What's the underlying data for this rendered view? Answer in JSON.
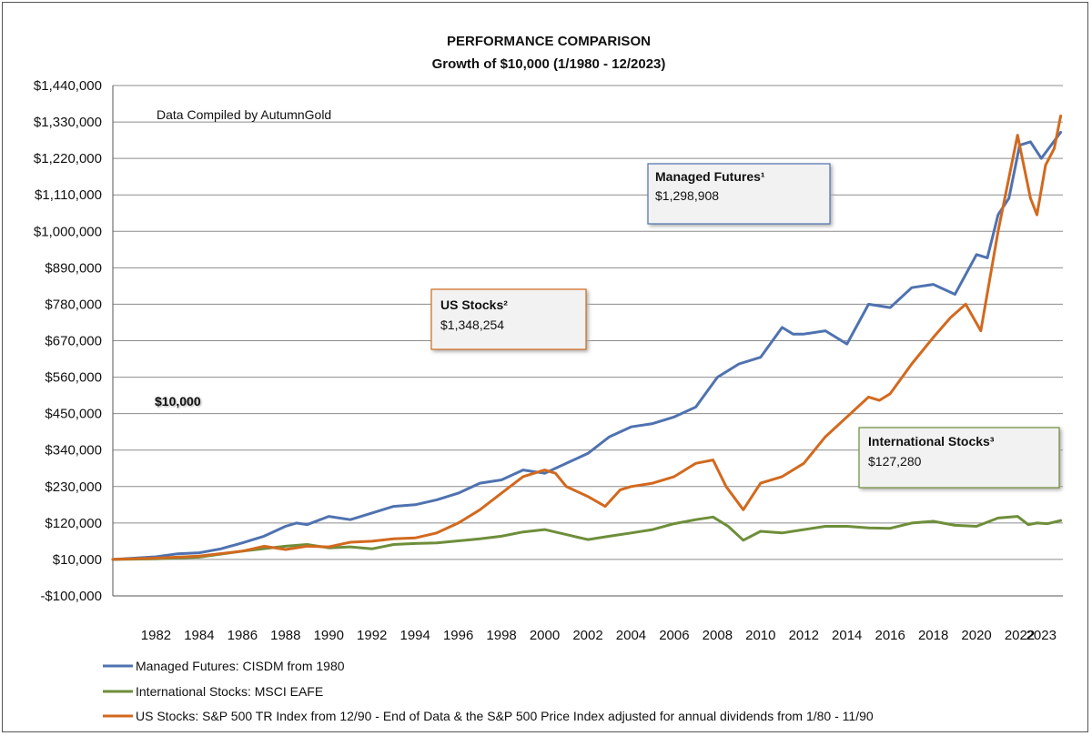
{
  "chart_data": {
    "type": "line",
    "title": "PERFORMANCE COMPARISON",
    "subtitle": "Growth of $10,000 (1/1980 - 12/2023)",
    "note": "Data Compiled by AutumnGold",
    "start_label": "$10,000",
    "xlim": [
      1980,
      2024
    ],
    "ylim": [
      -100000,
      1440000
    ],
    "y_ticks": [
      -100000,
      10000,
      120000,
      230000,
      340000,
      450000,
      560000,
      670000,
      780000,
      890000,
      1000000,
      1110000,
      1220000,
      1330000,
      1440000
    ],
    "y_tick_labels": [
      "-$100,000",
      "$10,000",
      "$120,000",
      "$230,000",
      "$340,000",
      "$450,000",
      "$560,000",
      "$670,000",
      "$780,000",
      "$890,000",
      "$1,000,000",
      "$1,110,000",
      "$1,220,000",
      "$1,330,000",
      "$1,440,000"
    ],
    "x_ticks": [
      1982,
      1984,
      1986,
      1988,
      1990,
      1992,
      1994,
      1996,
      1998,
      2000,
      2002,
      2004,
      2006,
      2008,
      2010,
      2012,
      2014,
      2016,
      2018,
      2020,
      2022,
      2023
    ],
    "x_tick_labels": [
      "1982",
      "1984",
      "1986",
      "1988",
      "1990",
      "1992",
      "1994",
      "1996",
      "1998",
      "2000",
      "2002",
      "2004",
      "2006",
      "2008",
      "2010",
      "2012",
      "2014",
      "2016",
      "2018",
      "2020",
      "2022",
      "2023"
    ],
    "grid": true,
    "legend_position": "bottom",
    "series": [
      {
        "name": "Managed Futures: CISDM from 1980",
        "color": "#4f72b0",
        "x": [
          1980,
          1981,
          1982,
          1983,
          1984,
          1985,
          1986,
          1987,
          1988,
          1988.5,
          1989,
          1990,
          1991,
          1992,
          1993,
          1994,
          1995,
          1996,
          1997,
          1998,
          1999,
          2000,
          2001,
          2002,
          2003,
          2004,
          2005,
          2006,
          2007,
          2008,
          2009,
          2010,
          2011,
          2011.5,
          2012,
          2013,
          2014,
          2015,
          2016,
          2017,
          2018,
          2019,
          2020,
          2020.5,
          2021,
          2021.5,
          2022,
          2022.5,
          2023,
          2023.9
        ],
        "y": [
          10000,
          14000,
          18000,
          27000,
          30000,
          42000,
          60000,
          80000,
          110000,
          120000,
          115000,
          140000,
          130000,
          150000,
          170000,
          175000,
          190000,
          210000,
          240000,
          250000,
          280000,
          270000,
          300000,
          330000,
          380000,
          410000,
          420000,
          440000,
          470000,
          560000,
          600000,
          620000,
          710000,
          690000,
          690000,
          700000,
          660000,
          780000,
          770000,
          830000,
          840000,
          810000,
          930000,
          920000,
          1050000,
          1100000,
          1260000,
          1270000,
          1220000,
          1298908
        ]
      },
      {
        "name": "International Stocks: MSCI EAFE",
        "color": "#6e8e3a",
        "x": [
          1980,
          1982,
          1984,
          1986,
          1988,
          1989,
          1990,
          1991,
          1992,
          1993,
          1994,
          1995,
          1996,
          1997,
          1998,
          1999,
          2000,
          2001,
          2002,
          2003,
          2004,
          2005,
          2006,
          2007,
          2007.8,
          2008.5,
          2009.2,
          2010,
          2011,
          2012,
          2013,
          2014,
          2015,
          2016,
          2017,
          2018,
          2019,
          2020,
          2021,
          2021.9,
          2022.4,
          2022.8,
          2023.3,
          2023.9
        ],
        "y": [
          10000,
          12000,
          17000,
          35000,
          50000,
          55000,
          45000,
          48000,
          42000,
          55000,
          58000,
          60000,
          66000,
          72000,
          80000,
          93000,
          100000,
          85000,
          70000,
          80000,
          90000,
          100000,
          118000,
          130000,
          138000,
          110000,
          68000,
          95000,
          90000,
          100000,
          110000,
          110000,
          105000,
          104000,
          120000,
          125000,
          113000,
          110000,
          135000,
          140000,
          115000,
          120000,
          118000,
          127280
        ]
      },
      {
        "name": "US Stocks: S&P 500 TR Index from 12/90 - End of Data & the S&P 500 Price Index adjusted for annual dividends from 1/80 - 11/90",
        "color": "#d2691e",
        "x": [
          1980,
          1982,
          1984,
          1986,
          1987,
          1988,
          1989,
          1990,
          1991,
          1992,
          1993,
          1994,
          1995,
          1996,
          1997,
          1998,
          1999,
          2000,
          2000.5,
          2001,
          2002,
          2002.8,
          2003.5,
          2004,
          2005,
          2006,
          2007,
          2007.8,
          2008.4,
          2009.2,
          2010,
          2011,
          2012,
          2013,
          2014,
          2015,
          2015.5,
          2016,
          2017,
          2018,
          2018.8,
          2019.5,
          2020.2,
          2020.6,
          2021,
          2021.9,
          2022.5,
          2022.8,
          2023.2,
          2023.6,
          2023.9
        ],
        "y": [
          10000,
          14000,
          20000,
          35000,
          50000,
          40000,
          50000,
          48000,
          62000,
          65000,
          72000,
          75000,
          90000,
          120000,
          160000,
          210000,
          260000,
          280000,
          270000,
          230000,
          200000,
          170000,
          220000,
          230000,
          240000,
          260000,
          300000,
          310000,
          230000,
          160000,
          240000,
          260000,
          300000,
          380000,
          440000,
          500000,
          490000,
          510000,
          600000,
          680000,
          740000,
          780000,
          700000,
          850000,
          1000000,
          1290000,
          1100000,
          1050000,
          1200000,
          1250000,
          1348254
        ]
      }
    ],
    "annotations": [
      {
        "label": "Managed Futures¹",
        "value": "$1,298,908"
      },
      {
        "label": "US Stocks²",
        "value": "$1,348,254"
      },
      {
        "label": "International Stocks³",
        "value": "$127,280"
      }
    ]
  },
  "legend": [
    {
      "label": "Managed Futures: CISDM from 1980",
      "color": "#4f72b0"
    },
    {
      "label": "International Stocks: MSCI EAFE",
      "color": "#6e8e3a"
    },
    {
      "label": "US Stocks: S&P 500 TR Index from 12/90 - End of Data & the S&P 500 Price Index adjusted for annual dividends from 1/80 - 11/90",
      "color": "#d2691e"
    }
  ]
}
